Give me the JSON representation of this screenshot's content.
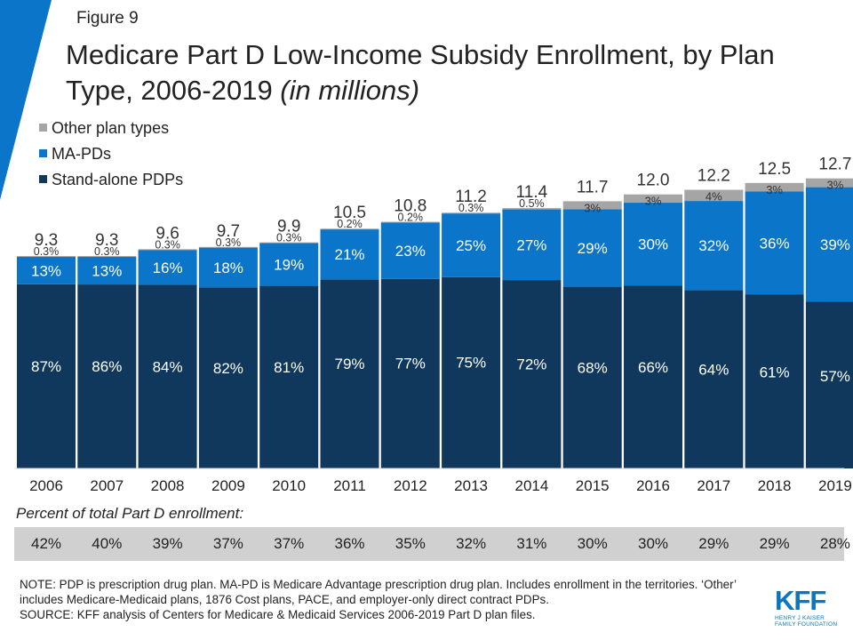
{
  "figure_label": "Figure 9",
  "title": {
    "main": "Medicare Part D Low-Income Subsidy Enrollment, by Plan Type, 2006-2019 ",
    "italic": "(in millions)"
  },
  "chart_data": {
    "type": "bar",
    "stacked": true,
    "categories": [
      "2006",
      "2007",
      "2008",
      "2009",
      "2010",
      "2011",
      "2012",
      "2013",
      "2014",
      "2015",
      "2016",
      "2017",
      "2018",
      "2019"
    ],
    "totals": [
      9.3,
      9.3,
      9.6,
      9.7,
      9.9,
      10.5,
      10.8,
      11.2,
      11.4,
      11.7,
      12.0,
      12.2,
      12.5,
      12.7
    ],
    "total_labels": [
      "9.3",
      "9.3",
      "9.6",
      "9.7",
      "9.9",
      "10.5",
      "10.8",
      "11.2",
      "11.4",
      "11.7",
      "12.0",
      "12.2",
      "12.5",
      "12.7"
    ],
    "series": [
      {
        "name": "Stand-alone PDPs",
        "color": "#10385c",
        "share": [
          87,
          86,
          84,
          82,
          81,
          79,
          77,
          75,
          72,
          68,
          66,
          64,
          61,
          57
        ],
        "labels": [
          "87%",
          "86%",
          "84%",
          "82%",
          "81%",
          "79%",
          "77%",
          "75%",
          "72%",
          "68%",
          "66%",
          "64%",
          "61%",
          "57%"
        ]
      },
      {
        "name": "MA-PDs",
        "color": "#0b75c9",
        "share": [
          13,
          13,
          16,
          18,
          19,
          21,
          23,
          25,
          27,
          29,
          30,
          32,
          36,
          39
        ],
        "labels": [
          "13%",
          "13%",
          "16%",
          "18%",
          "19%",
          "21%",
          "23%",
          "25%",
          "27%",
          "29%",
          "30%",
          "32%",
          "36%",
          "39%"
        ]
      },
      {
        "name": "Other plan types",
        "color": "#a5a5a5",
        "share": [
          0.3,
          0.3,
          0.3,
          0.3,
          0.3,
          0.2,
          0.2,
          0.3,
          0.5,
          3,
          3,
          4,
          3,
          3
        ],
        "labels": [
          "0.3%",
          "0.3%",
          "0.3%",
          "0.3%",
          "0.3%",
          "0.2%",
          "0.2%",
          "0.3%",
          "0.5%",
          "3%",
          "3%",
          "4%",
          "3%",
          "3%"
        ]
      }
    ],
    "legend_order": [
      "Other plan types",
      "MA-PDs",
      "Stand-alone PDPs"
    ],
    "legend_position": "top-left",
    "ylim": [
      0,
      13
    ],
    "grid": false,
    "percent_of_total_label": "Percent of total Part D enrollment:",
    "percent_of_total": [
      "42%",
      "40%",
      "39%",
      "37%",
      "37%",
      "36%",
      "35%",
      "32%",
      "31%",
      "30%",
      "30%",
      "29%",
      "29%",
      "28%"
    ]
  },
  "note": "NOTE: PDP is prescription drug plan. MA-PD is Medicare Advantage prescription drug plan. Includes enrollment in the territories. ‘Other’ includes Medicare-Medicaid plans, 1876 Cost plans, PACE, and employer-only direct contract PDPs.",
  "source": "SOURCE: KFF analysis of Centers for Medicare & Medicaid Services 2006-2019 Part D plan files.",
  "logo": {
    "mark": "KFF",
    "subtitle": "HENRY J KAISER FAMILY FOUNDATION"
  },
  "colors": {
    "corner_accent": "#0b75c9",
    "strip_background": "#d0d0d0"
  }
}
